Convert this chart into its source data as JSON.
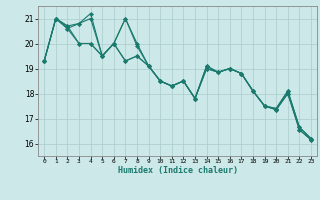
{
  "xlabel": "Humidex (Indice chaleur)",
  "background_color": "#cce8e8",
  "line_color": "#1a7a6e",
  "grid_color": "#aacccc",
  "xlim": [
    -0.5,
    23.5
  ],
  "ylim": [
    15.5,
    21.5
  ],
  "yticks": [
    16,
    17,
    18,
    19,
    20,
    21
  ],
  "xticks": [
    0,
    1,
    2,
    3,
    4,
    5,
    6,
    7,
    8,
    9,
    10,
    11,
    12,
    13,
    14,
    15,
    16,
    17,
    18,
    19,
    20,
    21,
    22,
    23
  ],
  "series": [
    [
      19.3,
      21.0,
      20.7,
      20.8,
      21.2,
      19.5,
      20.0,
      21.0,
      20.0,
      19.1,
      18.5,
      18.3,
      18.5,
      17.8,
      19.1,
      18.85,
      19.0,
      18.8,
      18.1,
      17.5,
      17.4,
      18.1,
      16.65,
      16.2
    ],
    [
      19.3,
      21.0,
      20.6,
      20.8,
      21.0,
      19.5,
      20.0,
      21.0,
      19.9,
      19.1,
      18.5,
      18.3,
      18.5,
      17.8,
      19.0,
      18.85,
      19.0,
      18.8,
      18.1,
      17.5,
      17.35,
      18.0,
      16.55,
      16.15
    ],
    [
      19.3,
      21.0,
      20.7,
      20.0,
      20.0,
      19.5,
      20.0,
      19.3,
      19.5,
      19.1,
      18.5,
      18.3,
      18.5,
      17.8,
      19.1,
      18.85,
      19.0,
      18.8,
      18.1,
      17.5,
      17.4,
      18.1,
      16.65,
      16.2
    ],
    [
      19.3,
      21.0,
      20.6,
      20.0,
      20.0,
      19.5,
      20.0,
      19.3,
      19.5,
      19.1,
      18.5,
      18.3,
      18.5,
      17.8,
      19.0,
      18.85,
      19.0,
      18.8,
      18.1,
      17.5,
      17.35,
      18.0,
      16.55,
      16.15
    ]
  ]
}
